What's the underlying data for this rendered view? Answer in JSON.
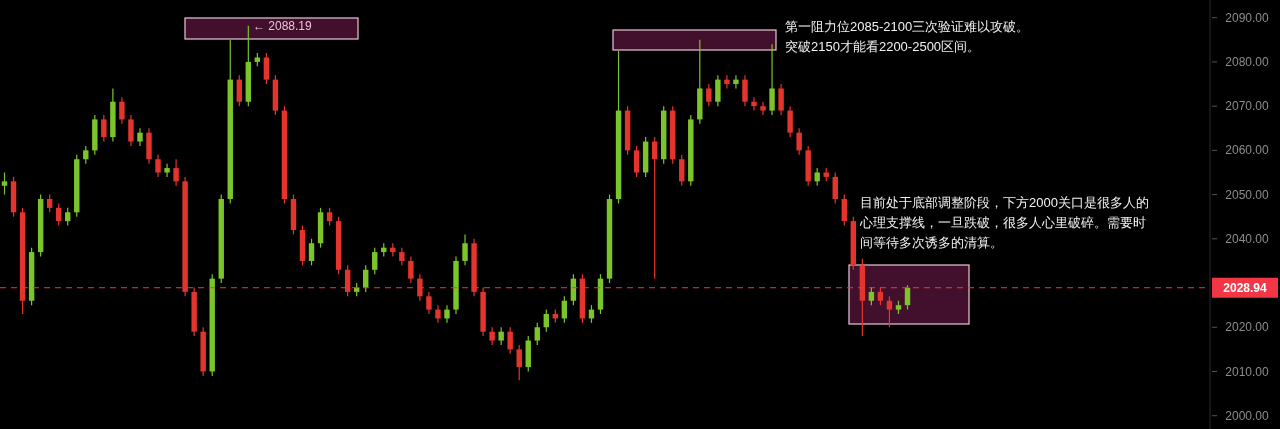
{
  "chart_data": {
    "type": "candlestick",
    "categories": [
      null,
      null,
      null,
      null,
      null,
      null,
      null,
      null,
      null,
      null,
      null,
      null,
      null,
      null,
      null,
      null,
      null,
      null,
      null,
      null,
      null,
      null,
      null,
      null,
      null,
      null,
      null,
      null,
      null,
      null,
      null,
      null,
      null,
      null,
      null,
      null,
      null,
      null,
      null,
      null,
      null,
      null,
      null,
      null,
      null,
      null,
      null,
      null,
      null,
      null,
      null,
      null,
      null,
      null,
      null,
      null,
      null,
      null,
      null,
      null,
      null,
      null,
      null,
      null,
      null,
      null,
      null,
      null,
      null,
      null,
      null,
      null,
      null,
      null,
      null,
      null,
      null,
      null,
      null,
      null,
      null,
      null,
      null,
      null,
      null,
      null,
      null,
      null,
      null,
      null,
      null,
      null,
      null,
      null,
      null,
      null,
      null,
      null,
      null,
      null,
      null,
      null,
      null,
      null,
      null,
      null,
      null,
      null,
      null,
      null,
      null,
      null,
      null,
      null,
      null,
      null,
      null,
      null,
      null,
      null,
      null,
      null,
      null,
      null,
      null,
      null,
      null,
      null,
      null,
      null,
      null,
      null,
      null,
      null
    ],
    "ohlc": [
      [
        2052,
        2055,
        2050,
        2053
      ],
      [
        2053,
        2054,
        2045,
        2046
      ],
      [
        2046,
        2047,
        2023,
        2026
      ],
      [
        2026,
        2038,
        2025,
        2037
      ],
      [
        2037,
        2050,
        2036,
        2049
      ],
      [
        2049,
        2050,
        2046,
        2047
      ],
      [
        2047,
        2048,
        2043,
        2044
      ],
      [
        2044,
        2047,
        2043,
        2046
      ],
      [
        2046,
        2059,
        2045,
        2058
      ],
      [
        2058,
        2061,
        2057,
        2060
      ],
      [
        2060,
        2068,
        2059,
        2067
      ],
      [
        2067,
        2068,
        2062,
        2063
      ],
      [
        2063,
        2074,
        2062,
        2071
      ],
      [
        2071,
        2072,
        2066,
        2067
      ],
      [
        2067,
        2068,
        2061,
        2062
      ],
      [
        2062,
        2065,
        2061,
        2064
      ],
      [
        2064,
        2065,
        2057,
        2058
      ],
      [
        2058,
        2059,
        2054,
        2055
      ],
      [
        2055,
        2057,
        2054,
        2056
      ],
      [
        2056,
        2058,
        2052,
        2053
      ],
      [
        2053,
        2054,
        2027,
        2028
      ],
      [
        2028,
        2029,
        2018,
        2019
      ],
      [
        2019,
        2020,
        2009,
        2010
      ],
      [
        2010,
        2032,
        2009,
        2031
      ],
      [
        2031,
        2050,
        2030,
        2049
      ],
      [
        2049,
        2085,
        2048,
        2076
      ],
      [
        2076,
        2077,
        2070,
        2071
      ],
      [
        2071,
        2088.19,
        2070,
        2080
      ],
      [
        2080,
        2082,
        2079,
        2081
      ],
      [
        2081,
        2082,
        2075,
        2076
      ],
      [
        2076,
        2077,
        2068,
        2069
      ],
      [
        2069,
        2070,
        2048,
        2049
      ],
      [
        2049,
        2050,
        2041,
        2042
      ],
      [
        2042,
        2043,
        2034,
        2035
      ],
      [
        2035,
        2040,
        2034,
        2039
      ],
      [
        2039,
        2047,
        2038,
        2046
      ],
      [
        2046,
        2047,
        2043,
        2044
      ],
      [
        2044,
        2045,
        2032,
        2033
      ],
      [
        2033,
        2034,
        2027,
        2028
      ],
      [
        2028,
        2030,
        2027,
        2029
      ],
      [
        2029,
        2034,
        2028,
        2033
      ],
      [
        2033,
        2038,
        2032,
        2037
      ],
      [
        2037,
        2039,
        2036,
        2038
      ],
      [
        2038,
        2039,
        2036,
        2037
      ],
      [
        2037,
        2038,
        2034,
        2035
      ],
      [
        2035,
        2036,
        2030,
        2031
      ],
      [
        2031,
        2032,
        2026,
        2027
      ],
      [
        2027,
        2028,
        2023,
        2024
      ],
      [
        2024,
        2025,
        2021,
        2022
      ],
      [
        2022,
        2025,
        2021,
        2024
      ],
      [
        2024,
        2036,
        2023,
        2035
      ],
      [
        2035,
        2041,
        2034,
        2039
      ],
      [
        2039,
        2040,
        2027,
        2028
      ],
      [
        2028,
        2029,
        2018,
        2019
      ],
      [
        2019,
        2020,
        2016,
        2017
      ],
      [
        2017,
        2020,
        2016,
        2019
      ],
      [
        2019,
        2020,
        2014,
        2015
      ],
      [
        2015,
        2016,
        2008,
        2011
      ],
      [
        2011,
        2018,
        2010,
        2017
      ],
      [
        2017,
        2021,
        2016,
        2020
      ],
      [
        2020,
        2024,
        2019,
        2023
      ],
      [
        2023,
        2024,
        2021,
        2022
      ],
      [
        2022,
        2027,
        2021,
        2026
      ],
      [
        2026,
        2032,
        2025,
        2031
      ],
      [
        2031,
        2032,
        2021,
        2022
      ],
      [
        2022,
        2025,
        2021,
        2024
      ],
      [
        2024,
        2032,
        2023,
        2031
      ],
      [
        2031,
        2050,
        2030,
        2049
      ],
      [
        2049,
        2082.5,
        2048,
        2069
      ],
      [
        2069,
        2070,
        2059,
        2060
      ],
      [
        2060,
        2061,
        2054,
        2055
      ],
      [
        2055,
        2063,
        2054,
        2062
      ],
      [
        2062,
        2063,
        2031,
        2058
      ],
      [
        2058,
        2070,
        2057,
        2069
      ],
      [
        2069,
        2070,
        2057,
        2058
      ],
      [
        2058,
        2059,
        2052,
        2053
      ],
      [
        2053,
        2068,
        2052,
        2067
      ],
      [
        2067,
        2085,
        2066,
        2074
      ],
      [
        2074,
        2075,
        2070,
        2071
      ],
      [
        2071,
        2077,
        2070,
        2076
      ],
      [
        2076,
        2077,
        2074,
        2075
      ],
      [
        2075,
        2077,
        2074,
        2076
      ],
      [
        2076,
        2077,
        2070,
        2071
      ],
      [
        2071,
        2072,
        2069,
        2070
      ],
      [
        2070,
        2071,
        2068,
        2069
      ],
      [
        2069,
        2084,
        2068,
        2074
      ],
      [
        2074,
        2075,
        2068,
        2069
      ],
      [
        2069,
        2070,
        2063,
        2064
      ],
      [
        2064,
        2065,
        2059,
        2060
      ],
      [
        2060,
        2061,
        2052,
        2053
      ],
      [
        2053,
        2056,
        2052,
        2055
      ],
      [
        2055,
        2056,
        2053,
        2054
      ],
      [
        2054,
        2055,
        2048,
        2049
      ],
      [
        2049,
        2050,
        2043,
        2044
      ],
      [
        2044,
        2045,
        2033,
        2034
      ],
      [
        2034,
        2035.5,
        2018,
        2026
      ],
      [
        2026,
        2029,
        2025,
        2028
      ],
      [
        2028,
        2029,
        2025,
        2026
      ],
      [
        2026,
        2027,
        2020,
        2024
      ],
      [
        2024,
        2026,
        2023,
        2025
      ],
      [
        2025,
        2029.5,
        2024,
        2028.94
      ],
      null,
      null,
      null,
      null,
      null,
      null,
      null,
      null,
      null,
      null,
      null,
      null,
      null,
      null,
      null,
      null,
      null,
      null,
      null,
      null,
      null,
      null,
      null,
      null,
      null,
      null,
      null,
      null,
      null,
      null,
      null,
      null,
      null
    ],
    "ylim": [
      1997,
      2094
    ],
    "yticks": [
      {
        "value": 2000,
        "label": "2000.00"
      },
      {
        "value": 2010,
        "label": "2010.00"
      },
      {
        "value": 2020,
        "label": "2020.00"
      },
      {
        "value": 2040,
        "label": "2040.00"
      },
      {
        "value": 2050,
        "label": "2050.00"
      },
      {
        "value": 2060,
        "label": "2060.00"
      },
      {
        "value": 2070,
        "label": "2070.00"
      },
      {
        "value": 2080,
        "label": "2080.00"
      },
      {
        "value": 2090,
        "label": "2090.00"
      }
    ],
    "tick_labels": "y",
    "ref_lines": [
      {
        "axis": "y",
        "value": 2028.94,
        "label": "2028.94",
        "color": "#f23645",
        "line_style": "dashed"
      }
    ],
    "annotations": [
      "← 2088.19",
      "第一阻力位2085-2100三次验证难以攻破。突破2150才能看2200-2500区间。",
      "目前处于底部调整阶段，下方2000关口是很多人的心理支撑线，一旦跌破，很多人心里破碎。需要时间等待多次诱多的清算。"
    ]
  }
}
